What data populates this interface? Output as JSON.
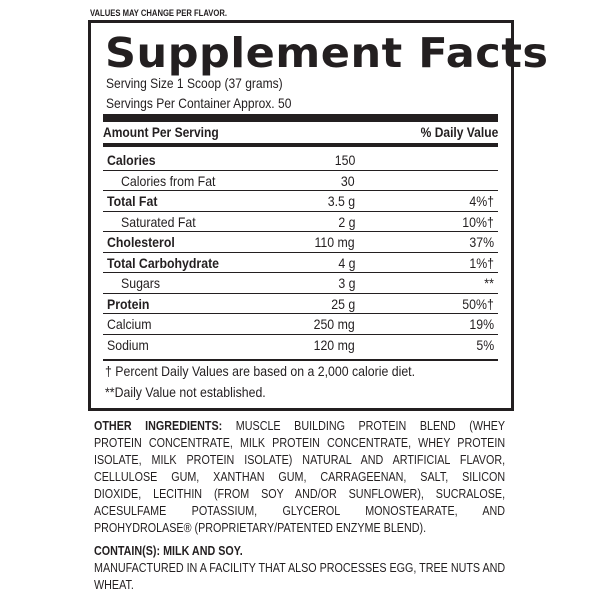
{
  "note": "VALUES MAY CHANGE PER FLAVOR.",
  "title": "Supplement Facts",
  "serving_size": "Serving Size 1 Scoop (37 grams)",
  "servings_per_container": "Servings Per Container Approx. 50",
  "header": {
    "amount": "Amount Per Serving",
    "dv": "% Daily Value"
  },
  "rows": [
    {
      "label": "Calories",
      "amount": "150",
      "dv": "",
      "bold": true,
      "indent": false
    },
    {
      "label": "Calories from Fat",
      "amount": "30",
      "dv": "",
      "bold": false,
      "indent": true
    },
    {
      "label": "Total Fat",
      "amount": "3.5 g",
      "dv": "4%†",
      "bold": true,
      "indent": false
    },
    {
      "label": "Saturated Fat",
      "amount": "2 g",
      "dv": "10%†",
      "bold": false,
      "indent": true
    },
    {
      "label": "Cholesterol",
      "amount": "110 mg",
      "dv": "37%",
      "bold": true,
      "indent": false
    },
    {
      "label": "Total Carbohydrate",
      "amount": "4 g",
      "dv": "1%†",
      "bold": true,
      "indent": false
    },
    {
      "label": "Sugars",
      "amount": "3 g",
      "dv": "**",
      "bold": false,
      "indent": true
    },
    {
      "label": "Protein",
      "amount": "25 g",
      "dv": "50%†",
      "bold": true,
      "indent": false
    },
    {
      "label": "Calcium",
      "amount": "250 mg",
      "dv": "19%",
      "bold": false,
      "indent": false
    },
    {
      "label": "Sodium",
      "amount": "120 mg",
      "dv": "5%",
      "bold": false,
      "indent": false
    }
  ],
  "footnotes": [
    "† Percent Daily Values are based on a 2,000 calorie diet.",
    "**Daily Value not established."
  ],
  "ingredients": {
    "label": "OTHER INGREDIENTS:",
    "lines": [
      "MUSCLE BUILDING PROTEIN BLEND (WHEY",
      "PROTEIN CONCENTRATE, MILK PROTEIN CONCENTRATE, WHEY PROTEIN",
      "ISOLATE, MILK PROTEIN ISOLATE) NATURAL AND ARTIFICIAL FLAVOR,",
      "CELLULOSE GUM, XANTHAN GUM, CARRAGEENAN, SALT, SILICON",
      "DIOXIDE, LECITHIN (FROM SOY AND/OR SUNFLOWER), SUCRALOSE,",
      "ACESULFAME POTASSIUM, GLYCEROL MONOSTEARATE, AND",
      "PROHYDROLASE® (PROPRIETARY/PATENTED ENZYME BLEND)."
    ]
  },
  "contains": "CONTAIN(S): MILK AND SOY.",
  "facility": [
    "MANUFACTURED IN A FACILITY THAT ALSO PROCESSES EGG, TREE NUTS AND",
    "WHEAT."
  ]
}
